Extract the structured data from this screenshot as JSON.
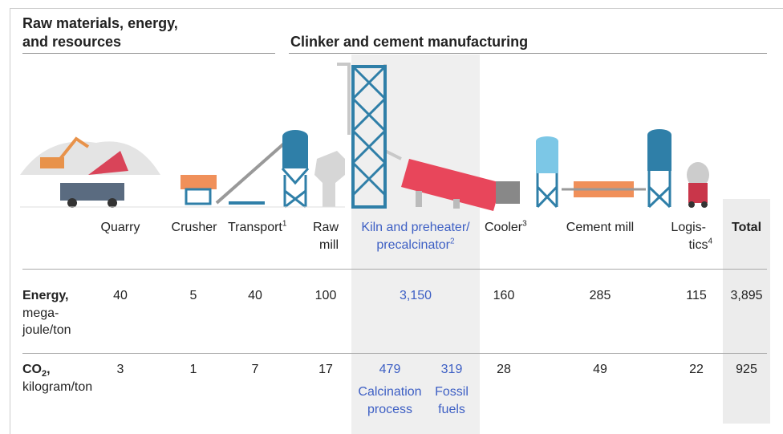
{
  "heading_1": [
    "Raw materials, energy,",
    "and resources"
  ],
  "heading_2": "Clinker and cement manufacturing",
  "stages": [
    "Quarry",
    "Crusher",
    "Transport",
    "Cooler",
    "Cement mill",
    "Total"
  ],
  "raw_mill": [
    "Raw",
    "mill"
  ],
  "kiln": [
    "Kiln and preheater/",
    "precalcinator"
  ],
  "logistics": [
    "Logis-",
    "tics"
  ],
  "notes": [
    "1",
    "2",
    "3",
    "4"
  ],
  "energy": {
    "label": "Energy,",
    "unit": [
      "mega-",
      "joule/ton"
    ],
    "values": [
      "40",
      "5",
      "40",
      "100",
      "3,150",
      "160",
      "285",
      "115",
      "3,895"
    ]
  },
  "co2": {
    "label": "CO",
    "label_sub": "2",
    "label_end": ",",
    "unit": "kilogram/ton",
    "values": [
      "3",
      "1",
      "7",
      "17",
      "28",
      "49",
      "22",
      "925"
    ],
    "kiln_parts": [
      {
        "value": "479",
        "label": [
          "Calcination",
          "process"
        ]
      },
      {
        "value": "319",
        "label": [
          "Fossil",
          "fuels"
        ]
      }
    ]
  }
}
